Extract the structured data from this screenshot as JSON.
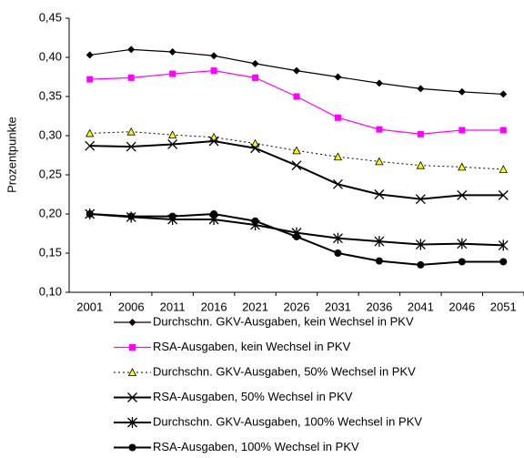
{
  "chart_data": {
    "type": "line",
    "y_label": "Prozentpunkte",
    "categories": [
      "2001",
      "2006",
      "2011",
      "2016",
      "2021",
      "2026",
      "2031",
      "2036",
      "2041",
      "2046",
      "2051"
    ],
    "ylim": [
      0.1,
      0.45
    ],
    "yticks": [
      {
        "value": 0.1,
        "label": "0,10"
      },
      {
        "value": 0.15,
        "label": "0,15"
      },
      {
        "value": 0.2,
        "label": "0,20"
      },
      {
        "value": 0.25,
        "label": "0,25"
      },
      {
        "value": 0.3,
        "label": "0,30"
      },
      {
        "value": 0.35,
        "label": "0,35"
      },
      {
        "value": 0.4,
        "label": "0,40"
      },
      {
        "value": 0.45,
        "label": "0,45"
      }
    ],
    "grid": false,
    "series": [
      {
        "name": "Durchschn. GKV-Ausgaben, kein Wechsel in PKV",
        "color": "#000000",
        "marker": "diamond",
        "dashed": false,
        "values": [
          0.403,
          0.41,
          0.407,
          0.402,
          0.392,
          0.383,
          0.375,
          0.367,
          0.36,
          0.356,
          0.353
        ]
      },
      {
        "name": "RSA-Ausgaben, kein Wechsel in PKV",
        "color": "#ff00ff",
        "marker": "square",
        "dashed": false,
        "values": [
          0.372,
          0.374,
          0.379,
          0.383,
          0.374,
          0.35,
          0.323,
          0.308,
          0.302,
          0.307,
          0.307
        ]
      },
      {
        "name": "Durchschn. GKV-Ausgaben, 50% Wechsel in PKV",
        "color": "#000000",
        "marker": "triangle",
        "marker_fill": "#ffff00",
        "dashed": true,
        "values": [
          0.303,
          0.305,
          0.301,
          0.298,
          0.29,
          0.281,
          0.273,
          0.267,
          0.262,
          0.26,
          0.257
        ]
      },
      {
        "name": "RSA-Ausgaben, 50% Wechsel in PKV",
        "color": "#000000",
        "marker": "x",
        "dashed": false,
        "values": [
          0.287,
          0.286,
          0.289,
          0.293,
          0.284,
          0.262,
          0.238,
          0.225,
          0.219,
          0.224,
          0.224
        ]
      },
      {
        "name": "Durchschn. GKV-Ausgaben, 100% Wechsel in PKV",
        "color": "#000000",
        "marker": "star",
        "dashed": false,
        "values": [
          0.2,
          0.196,
          0.193,
          0.193,
          0.186,
          0.176,
          0.169,
          0.165,
          0.161,
          0.162,
          0.16
        ]
      },
      {
        "name": "RSA-Ausgaben, 100% Wechsel in PKV",
        "color": "#000000",
        "marker": "circle",
        "dashed": false,
        "values": [
          0.2,
          0.197,
          0.197,
          0.2,
          0.191,
          0.171,
          0.15,
          0.14,
          0.135,
          0.139,
          0.139
        ]
      }
    ]
  }
}
